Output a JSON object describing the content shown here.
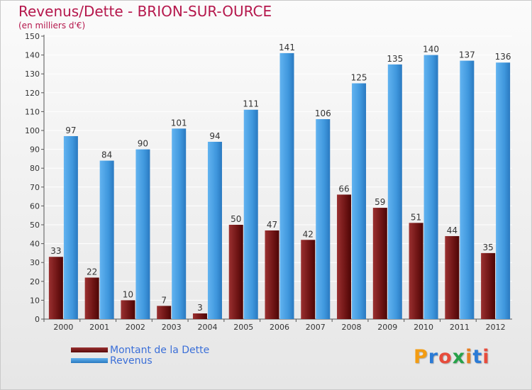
{
  "chart_data": {
    "type": "bar",
    "title": "Revenus/Dette - BRION-SUR-OURCE",
    "subtitle": "(en milliers d'€)",
    "xlabel": "",
    "ylabel": "",
    "categories": [
      "2000",
      "2001",
      "2002",
      "2003",
      "2004",
      "2005",
      "2006",
      "2007",
      "2008",
      "2009",
      "2010",
      "2011",
      "2012"
    ],
    "ylim": [
      0,
      150
    ],
    "yticks": [
      0,
      10,
      20,
      30,
      40,
      50,
      60,
      70,
      80,
      90,
      100,
      110,
      120,
      130,
      140,
      150
    ],
    "grid": true,
    "legend_position": "bottom-left",
    "series": [
      {
        "name": "Montant de la Dette",
        "color": "#7a1c1c",
        "values": [
          33,
          22,
          10,
          7,
          3,
          50,
          47,
          42,
          66,
          59,
          51,
          44,
          35
        ]
      },
      {
        "name": "Revenus",
        "color": "#4a9fe3",
        "values": [
          97,
          84,
          90,
          101,
          94,
          111,
          141,
          106,
          125,
          135,
          140,
          137,
          136
        ]
      }
    ]
  },
  "logo": {
    "letters": [
      "P",
      "r",
      "o",
      "x",
      "i",
      "t",
      "i"
    ],
    "colors": [
      "#f39c12",
      "#2b7bd6",
      "#e74c3c",
      "#27a24a",
      "#e67e22",
      "#2b7bd6",
      "#e74c3c"
    ]
  }
}
